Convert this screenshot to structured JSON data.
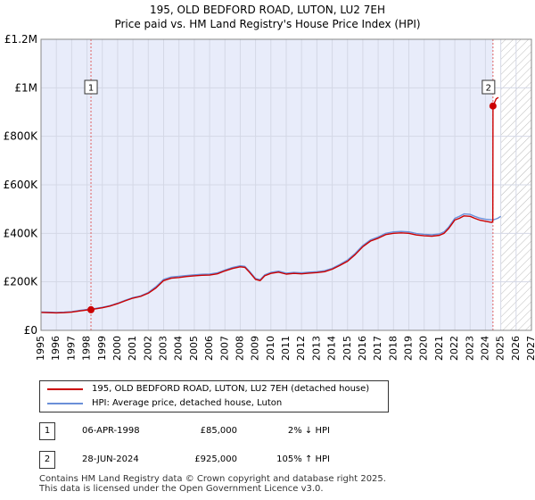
{
  "title_line1": "195, OLD BEDFORD ROAD, LUTON, LU2 7EH",
  "title_line2": "Price paid vs. HM Land Registry's House Price Index (HPI)",
  "chart_data": {
    "type": "line",
    "title": "195, OLD BEDFORD ROAD, LUTON, LU2 7EH — Price paid vs. HM Land Registry's House Price Index (HPI)",
    "xlim": [
      1995,
      2027
    ],
    "ylim": [
      0,
      1200000
    ],
    "x_ticks": [
      1995,
      1996,
      1997,
      1998,
      1999,
      2000,
      2001,
      2002,
      2003,
      2004,
      2005,
      2006,
      2007,
      2008,
      2009,
      2010,
      2011,
      2012,
      2013,
      2014,
      2015,
      2016,
      2017,
      2018,
      2019,
      2020,
      2021,
      2022,
      2023,
      2024,
      2025,
      2026,
      2027
    ],
    "y_ticks": [
      {
        "value": 0,
        "label": "£0"
      },
      {
        "value": 200000,
        "label": "£200K"
      },
      {
        "value": 400000,
        "label": "£400K"
      },
      {
        "value": 600000,
        "label": "£600K"
      },
      {
        "value": 800000,
        "label": "£800K"
      },
      {
        "value": 1000000,
        "label": "£1M"
      },
      {
        "value": 1200000,
        "label": "£1.2M"
      }
    ],
    "shaded_ranges": [
      {
        "from": 1995,
        "to": 2024.49,
        "color": "#e8ecfa",
        "style": "fill"
      },
      {
        "from": 2025.0,
        "to": 2027,
        "color": "#bbbbbb",
        "style": "hatch"
      }
    ],
    "series": [
      {
        "name": "195, OLD BEDFORD ROAD, LUTON, LU2 7EH (detached house)",
        "color": "#cc0000",
        "x": [
          1995,
          1995.5,
          1996,
          1996.5,
          1997,
          1997.5,
          1998,
          1998.26,
          1998.5,
          1999,
          1999.5,
          2000,
          2000.5,
          2001,
          2001.5,
          2002,
          2002.5,
          2003,
          2003.5,
          2004,
          2004.5,
          2005,
          2005.5,
          2006,
          2006.5,
          2007,
          2007.5,
          2008,
          2008.3,
          2008.6,
          2009,
          2009.3,
          2009.6,
          2010,
          2010.5,
          2011,
          2011.5,
          2012,
          2012.5,
          2013,
          2013.5,
          2014,
          2014.5,
          2015,
          2015.5,
          2016,
          2016.5,
          2017,
          2017.5,
          2018,
          2018.5,
          2019,
          2019.5,
          2020,
          2020.5,
          2021,
          2021.3,
          2021.6,
          2022,
          2022.3,
          2022.6,
          2023,
          2023.3,
          2023.6,
          2024,
          2024.4,
          2024.48,
          2024.49,
          2024.7,
          2024.85
        ],
        "y": [
          74000,
          73000,
          72000,
          73000,
          75000,
          80000,
          84000,
          85000,
          88000,
          93000,
          100000,
          110000,
          122000,
          133000,
          140000,
          153000,
          175000,
          205000,
          215000,
          218000,
          222000,
          225000,
          227000,
          228000,
          233000,
          245000,
          255000,
          262000,
          260000,
          240000,
          210000,
          205000,
          225000,
          235000,
          240000,
          232000,
          235000,
          233000,
          236000,
          238000,
          242000,
          252000,
          268000,
          285000,
          312000,
          345000,
          368000,
          380000,
          395000,
          400000,
          402000,
          400000,
          393000,
          390000,
          388000,
          392000,
          400000,
          420000,
          455000,
          462000,
          472000,
          470000,
          462000,
          455000,
          450000,
          445000,
          450000,
          925000,
          955000,
          960000
        ]
      },
      {
        "name": "HPI: Average price, detached house, Luton",
        "color": "#6a8fd8",
        "x": [
          1995,
          1995.5,
          1996,
          1996.5,
          1997,
          1997.5,
          1998,
          1998.5,
          1999,
          1999.5,
          2000,
          2000.5,
          2001,
          2001.5,
          2002,
          2002.5,
          2003,
          2003.5,
          2004,
          2004.5,
          2005,
          2005.5,
          2006,
          2006.5,
          2007,
          2007.5,
          2008,
          2008.3,
          2008.6,
          2009,
          2009.3,
          2009.6,
          2010,
          2010.5,
          2011,
          2011.5,
          2012,
          2012.5,
          2013,
          2013.5,
          2014,
          2014.5,
          2015,
          2015.5,
          2016,
          2016.5,
          2017,
          2017.5,
          2018,
          2018.5,
          2019,
          2019.5,
          2020,
          2020.5,
          2021,
          2021.3,
          2021.6,
          2022,
          2022.3,
          2022.6,
          2023,
          2023.3,
          2023.6,
          2024,
          2024.5,
          2024.8,
          2025.0
        ],
        "y": [
          76000,
          75000,
          74000,
          75000,
          77000,
          82000,
          86000,
          90000,
          95000,
          102000,
          112000,
          124000,
          135000,
          142000,
          156000,
          180000,
          210000,
          220000,
          223000,
          226000,
          229000,
          231000,
          232000,
          237000,
          249000,
          259000,
          266000,
          264000,
          244000,
          214000,
          209000,
          229000,
          239000,
          244000,
          236000,
          239000,
          237000,
          240000,
          242000,
          246000,
          256000,
          272000,
          290000,
          317000,
          350000,
          373000,
          385000,
          400000,
          406000,
          408000,
          406000,
          399000,
          396000,
          394000,
          398000,
          406000,
          426000,
          462000,
          470000,
          480000,
          478000,
          470000,
          463000,
          458000,
          455000,
          462000,
          470000
        ]
      }
    ],
    "annotations": [
      {
        "label": "1",
        "x": 1998.26,
        "y": 85000
      },
      {
        "label": "2",
        "x": 2024.49,
        "y": 925000
      }
    ],
    "xlabel": "",
    "ylabel": ""
  },
  "legend": {
    "items": [
      {
        "label": "195, OLD BEDFORD ROAD, LUTON, LU2 7EH (detached house)",
        "color": "#cc0000"
      },
      {
        "label": "HPI: Average price, detached house, Luton",
        "color": "#6a8fd8"
      }
    ]
  },
  "sales": [
    {
      "num": "1",
      "date": "06-APR-1998",
      "price": "£85,000",
      "hpi": "2% ↓ HPI"
    },
    {
      "num": "2",
      "date": "28-JUN-2024",
      "price": "£925,000",
      "hpi": "105% ↑ HPI"
    }
  ],
  "footer_line1": "Contains HM Land Registry data © Crown copyright and database right 2025.",
  "footer_line2": "This data is licensed under the Open Government Licence v3.0."
}
